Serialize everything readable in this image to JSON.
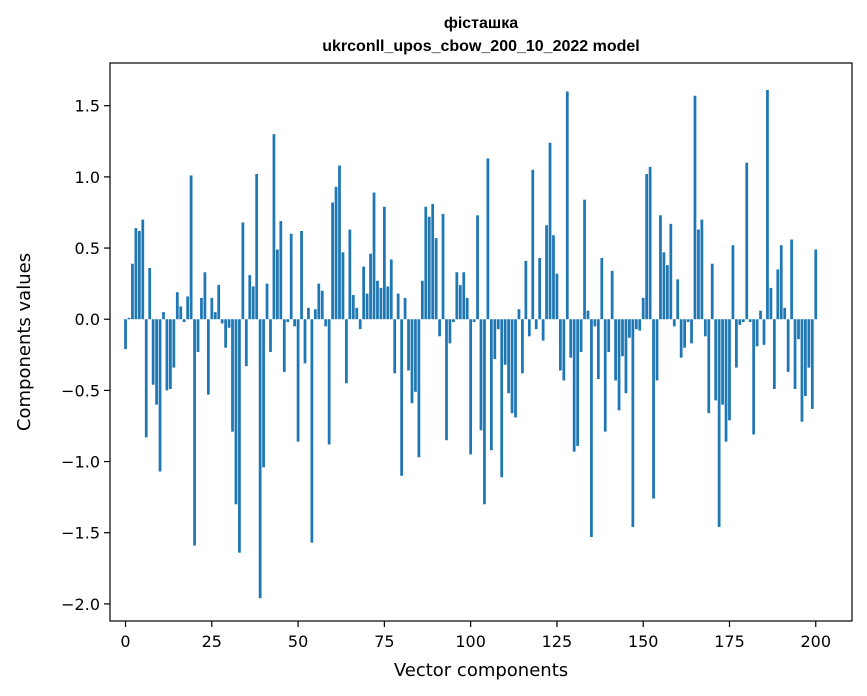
{
  "chart_data": {
    "type": "bar",
    "title": "фісташка",
    "subtitle": "ukrconll_upos_cbow_200_10_2022 model",
    "xlabel": "Vector components",
    "ylabel": "Components values",
    "xlim": [
      -4.5,
      210.5
    ],
    "ylim": [
      -2.12,
      1.8
    ],
    "xticks": [
      0,
      25,
      50,
      75,
      100,
      125,
      150,
      175,
      200
    ],
    "yticks": [
      -2.0,
      -1.5,
      -1.0,
      -0.5,
      0.0,
      0.5,
      1.0,
      1.5
    ],
    "ytick_labels": [
      "−2.0",
      "−1.5",
      "−1.0",
      "−0.5",
      "0.0",
      "0.5",
      "1.0",
      "1.5"
    ],
    "bar_color": "#1f77b4",
    "values": [
      -0.21,
      0.01,
      0.39,
      0.64,
      0.62,
      0.7,
      -0.83,
      0.36,
      -0.46,
      -0.6,
      -1.07,
      0.05,
      -0.5,
      -0.49,
      -0.34,
      0.19,
      0.09,
      -0.02,
      0.16,
      1.01,
      -1.59,
      -0.23,
      0.15,
      0.33,
      -0.53,
      0.15,
      0.05,
      0.24,
      -0.03,
      -0.2,
      -0.06,
      -0.79,
      -1.3,
      -1.64,
      0.68,
      -0.33,
      0.31,
      0.23,
      1.02,
      -1.96,
      -1.04,
      0.25,
      -0.23,
      1.3,
      0.49,
      0.69,
      -0.37,
      -0.02,
      0.6,
      -0.05,
      -0.86,
      0.62,
      -0.31,
      0.08,
      -1.57,
      0.07,
      0.25,
      0.2,
      -0.05,
      -0.88,
      0.82,
      0.93,
      1.08,
      0.47,
      -0.45,
      0.63,
      0.17,
      0.08,
      -0.07,
      0.37,
      0.18,
      0.46,
      0.89,
      0.27,
      0.22,
      0.79,
      0.23,
      0.42,
      -0.38,
      0.18,
      -1.1,
      0.15,
      -0.36,
      -0.59,
      -0.51,
      -0.97,
      0.27,
      0.79,
      0.72,
      0.81,
      0.57,
      -0.12,
      0.74,
      -0.85,
      -0.17,
      -0.02,
      0.33,
      0.24,
      0.33,
      0.15,
      -0.95,
      -0.02,
      0.73,
      -0.78,
      -1.3,
      1.13,
      -0.92,
      -0.28,
      -0.07,
      -1.11,
      -0.32,
      -0.52,
      -0.66,
      -0.69,
      0.07,
      -0.38,
      0.41,
      -0.12,
      1.05,
      -0.07,
      0.43,
      -0.15,
      0.66,
      1.24,
      0.59,
      0.32,
      -0.36,
      -0.43,
      1.6,
      -0.27,
      -0.93,
      -0.89,
      -0.23,
      0.84,
      0.06,
      -1.53,
      -0.05,
      -0.42,
      0.43,
      -0.79,
      -0.23,
      0.34,
      -0.43,
      -0.64,
      -0.26,
      -0.52,
      -0.13,
      -1.46,
      -0.07,
      -0.08,
      0.15,
      1.02,
      1.07,
      -1.26,
      -0.43,
      0.73,
      0.47,
      0.38,
      0.67,
      -0.05,
      0.28,
      -0.27,
      -0.2,
      -0.02,
      -0.17,
      1.57,
      0.63,
      0.7,
      -0.12,
      -0.66,
      0.39,
      -0.57,
      -1.46,
      -0.6,
      -0.86,
      -0.71,
      0.52,
      -0.34,
      -0.04,
      -0.02,
      1.1,
      -0.02,
      -0.81,
      -0.19,
      0.06,
      -0.18,
      1.61,
      0.22,
      -0.49,
      0.35,
      0.52,
      0.08,
      -0.37,
      0.56,
      -0.49,
      -0.14,
      -0.72,
      -0.54,
      -0.34,
      -0.63,
      0.49
    ]
  }
}
